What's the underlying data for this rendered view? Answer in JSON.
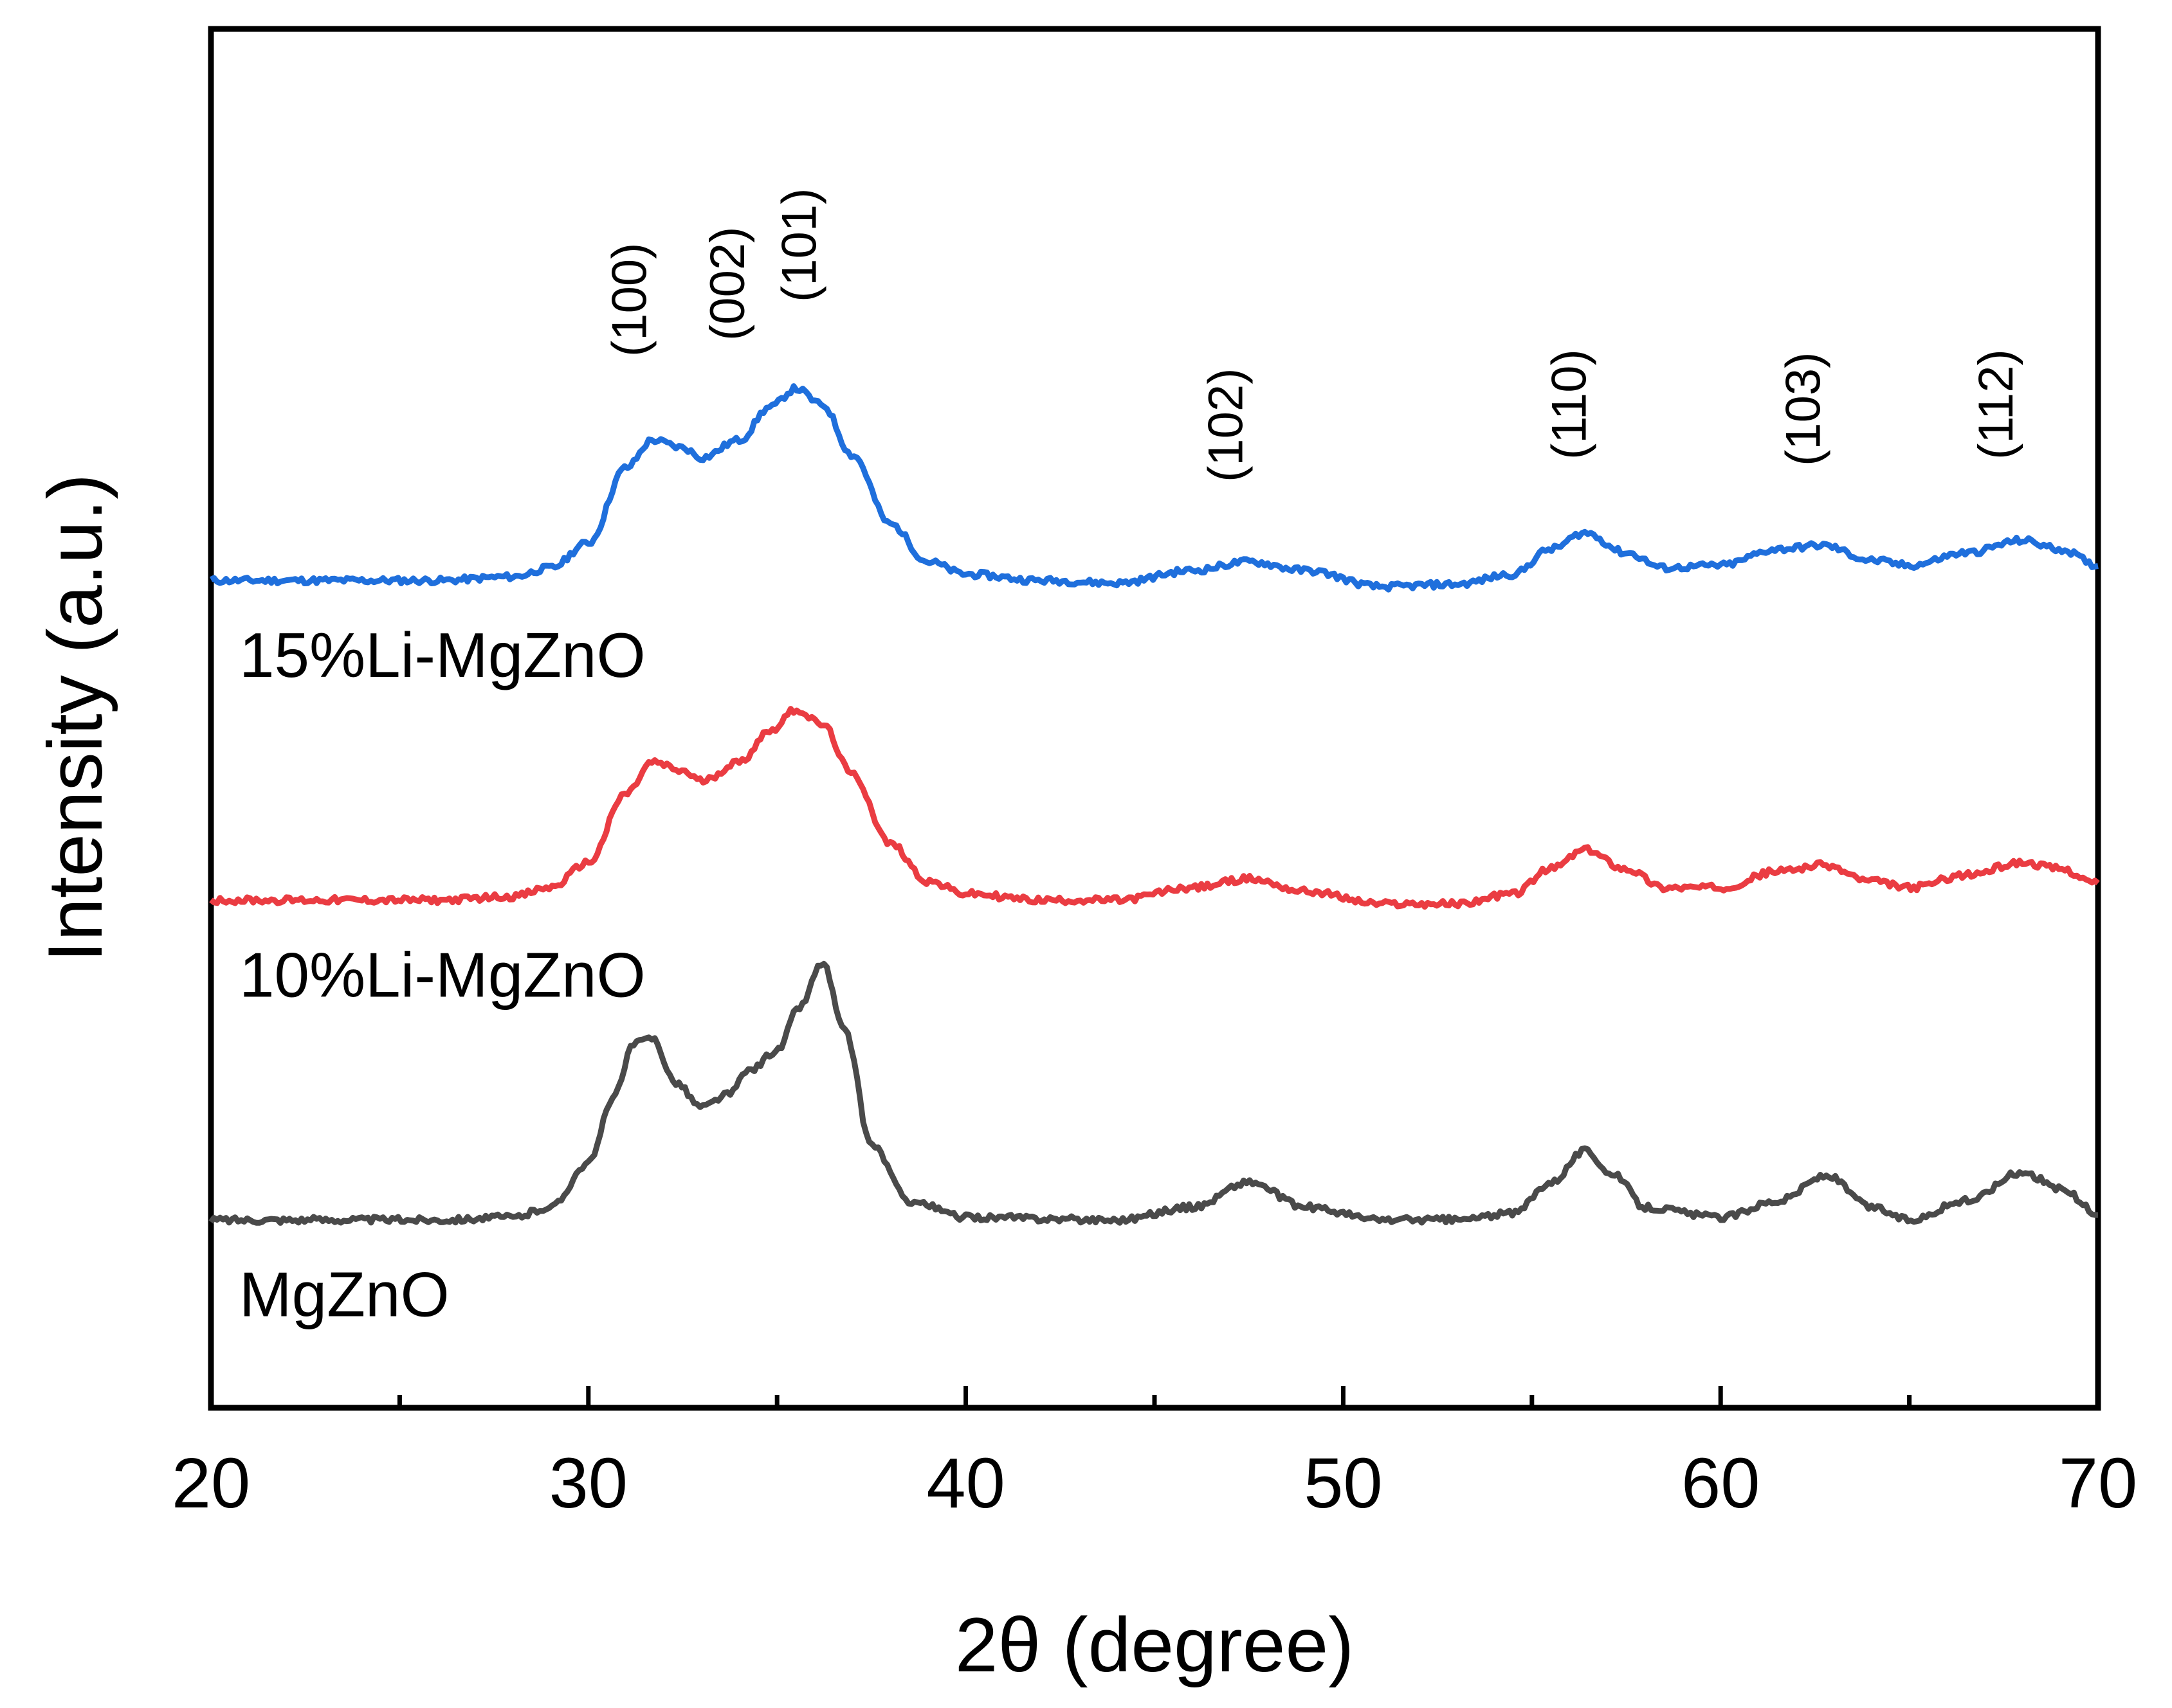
{
  "chart_data": {
    "type": "line",
    "title": "",
    "xlabel": "2θ (degree)",
    "ylabel": "Intensity (a.u.)",
    "xlim": [
      20,
      70
    ],
    "ylim": [
      0,
      11
    ],
    "y_ticks_shown": false,
    "grid": false,
    "legend": "none (series labelled inline, below each curve)",
    "x_ticks": [
      20,
      30,
      40,
      50,
      60,
      70
    ],
    "x_minor_ticks": [
      25,
      35,
      45,
      55,
      65
    ],
    "peak_labels": [
      {
        "text": "(100)",
        "x": 31.7
      },
      {
        "text": "(002)",
        "x": 34.3
      },
      {
        "text": "(101)",
        "x": 36.2
      },
      {
        "text": "(102)",
        "x": 47.5
      },
      {
        "text": "(110)",
        "x": 56.6
      },
      {
        "text": "(103)",
        "x": 62.8
      },
      {
        "text": "(112)",
        "x": 67.9
      }
    ],
    "series": [
      {
        "name": "15%Li-MgZnO",
        "color": "#1f6fdc",
        "x": [
          20,
          26,
          28,
          29,
          30,
          31,
          31.7,
          32.5,
          33,
          34,
          34.8,
          35.5,
          36.2,
          37,
          38,
          39,
          40,
          42,
          44,
          46,
          47.5,
          49,
          51,
          53,
          54.5,
          55.5,
          56.4,
          57.5,
          58.5,
          60,
          61.5,
          62.7,
          64,
          65,
          66.5,
          68,
          69,
          70
        ],
        "y": [
          6.6,
          6.6,
          6.63,
          6.7,
          6.9,
          7.5,
          7.72,
          7.66,
          7.58,
          7.72,
          7.98,
          8.13,
          8.0,
          7.6,
          7.05,
          6.75,
          6.65,
          6.6,
          6.58,
          6.68,
          6.75,
          6.68,
          6.55,
          6.57,
          6.65,
          6.85,
          6.98,
          6.82,
          6.7,
          6.72,
          6.85,
          6.88,
          6.76,
          6.72,
          6.82,
          6.92,
          6.85,
          6.72
        ]
      },
      {
        "name": "10%Li-MgZnO",
        "color": "#ea3c42",
        "x": [
          20,
          26,
          28,
          29,
          30,
          31,
          31.7,
          32.5,
          33,
          34,
          34.8,
          35.5,
          36.2,
          37,
          38,
          39,
          40,
          42,
          44,
          46,
          47.5,
          49,
          51,
          53,
          54.5,
          55.5,
          56.4,
          57.5,
          58.5,
          60,
          61.5,
          62.7,
          64,
          65,
          66.5,
          68,
          69,
          70
        ],
        "y": [
          4.05,
          4.05,
          4.08,
          4.15,
          4.35,
          4.9,
          5.15,
          5.08,
          5.0,
          5.15,
          5.4,
          5.57,
          5.45,
          5.05,
          4.5,
          4.2,
          4.1,
          4.05,
          4.05,
          4.15,
          4.22,
          4.12,
          4.02,
          4.02,
          4.1,
          4.3,
          4.45,
          4.3,
          4.15,
          4.15,
          4.28,
          4.33,
          4.2,
          4.15,
          4.25,
          4.35,
          4.3,
          4.18
        ]
      },
      {
        "name": "MgZnO",
        "color": "#4a4a4a",
        "x": [
          20,
          26,
          28,
          29,
          30,
          30.7,
          31.2,
          31.7,
          32.3,
          33,
          33.7,
          34.3,
          35,
          35.6,
          36.2,
          36.8,
          37.5,
          38.5,
          40,
          44,
          46,
          47.5,
          49,
          51,
          53,
          54.5,
          55.5,
          56.4,
          57.2,
          58,
          60,
          61.5,
          62.8,
          64,
          65,
          66.5,
          68,
          69,
          70
        ],
        "y": [
          1.5,
          1.5,
          1.52,
          1.6,
          1.95,
          2.5,
          2.9,
          2.95,
          2.6,
          2.4,
          2.5,
          2.7,
          2.85,
          3.2,
          3.55,
          3.0,
          2.1,
          1.65,
          1.52,
          1.5,
          1.6,
          1.8,
          1.6,
          1.5,
          1.5,
          1.55,
          1.8,
          2.05,
          1.85,
          1.6,
          1.52,
          1.65,
          1.85,
          1.6,
          1.5,
          1.65,
          1.88,
          1.75,
          1.55
        ]
      }
    ]
  }
}
